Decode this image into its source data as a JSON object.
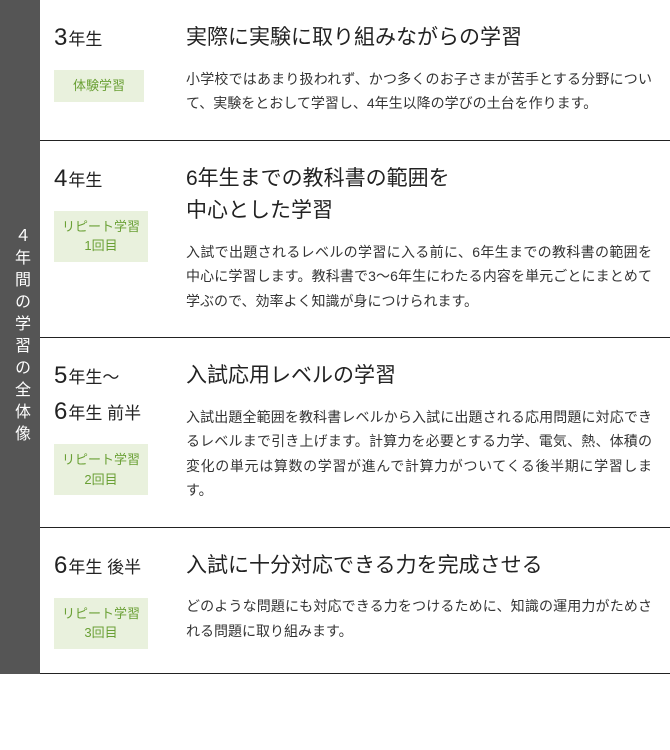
{
  "sidebar_label": "４年間の学習の全体像",
  "colors": {
    "sidebar_bg": "#555555",
    "sidebar_text": "#ffffff",
    "tag_bg": "#e9f1dd",
    "tag_text": "#6aa035",
    "border": "#222222",
    "title_text": "#222222",
    "body_text": "#333333"
  },
  "rows": [
    {
      "grade_num": "3",
      "grade_suffix": "年生",
      "grade_extra": "",
      "tag": "体験学習",
      "title": "実際に実験に取り組みながらの学習",
      "desc": "小学校ではあまり扱われず、かつ多くのお子さまが苦手とする分野について、実験をとおして学習し、4年生以降の学びの土台を作ります。"
    },
    {
      "grade_num": "4",
      "grade_suffix": "年生",
      "grade_extra": "",
      "tag": "リピート学習\n1回目",
      "title": "6年生までの教科書の範囲を\n中心とした学習",
      "desc": "入試で出題されるレベルの学習に入る前に、6年生までの教科書の範囲を中心に学習します。教科書で3～6年生にわたる内容を単元ごとにまとめて学ぶので、効率よく知識が身につけられます。"
    },
    {
      "grade_num": "5",
      "grade_suffix": "年生～",
      "grade_num2": "6",
      "grade_suffix2": "年生 前半",
      "tag": "リピート学習\n2回目",
      "title": "入試応用レベルの学習",
      "desc": "入試出題全範囲を教科書レベルから入試に出題される応用問題に対応できるレベルまで引き上げます。計算力を必要とする力学、電気、熱、体積の変化の単元は算数の学習が進んで計算力がついてくる後半期に学習します。"
    },
    {
      "grade_num": "6",
      "grade_suffix": "年生 後半",
      "grade_extra": "",
      "tag": "リピート学習\n3回目",
      "title": "入試に十分対応できる力を完成させる",
      "desc": "どのような問題にも対応できる力をつけるために、知識の運用力がためされる問題に取り組みます。"
    }
  ]
}
